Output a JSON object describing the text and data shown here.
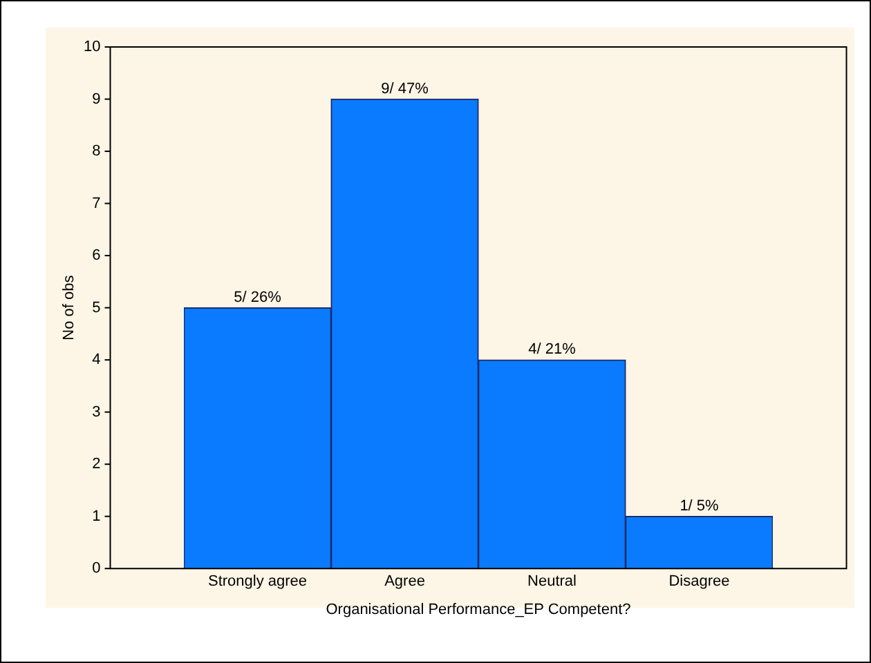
{
  "chart_data": {
    "type": "bar",
    "xlabel": "Organisational Performance_EP Competent?",
    "ylabel": "No of obs",
    "categories": [
      "Strongly agree",
      "Agree",
      "Neutral",
      "Disagree"
    ],
    "values": [
      5,
      9,
      4,
      1
    ],
    "value_labels": [
      "5/ 26%",
      "9/ 47%",
      "4/ 21%",
      "1/ 5%"
    ],
    "color": "#0a7bff",
    "ylim": [
      0,
      10
    ],
    "yticks": [
      0,
      1,
      2,
      3,
      4,
      5,
      6,
      7,
      8,
      9,
      10
    ],
    "grid": false,
    "legend": false
  }
}
